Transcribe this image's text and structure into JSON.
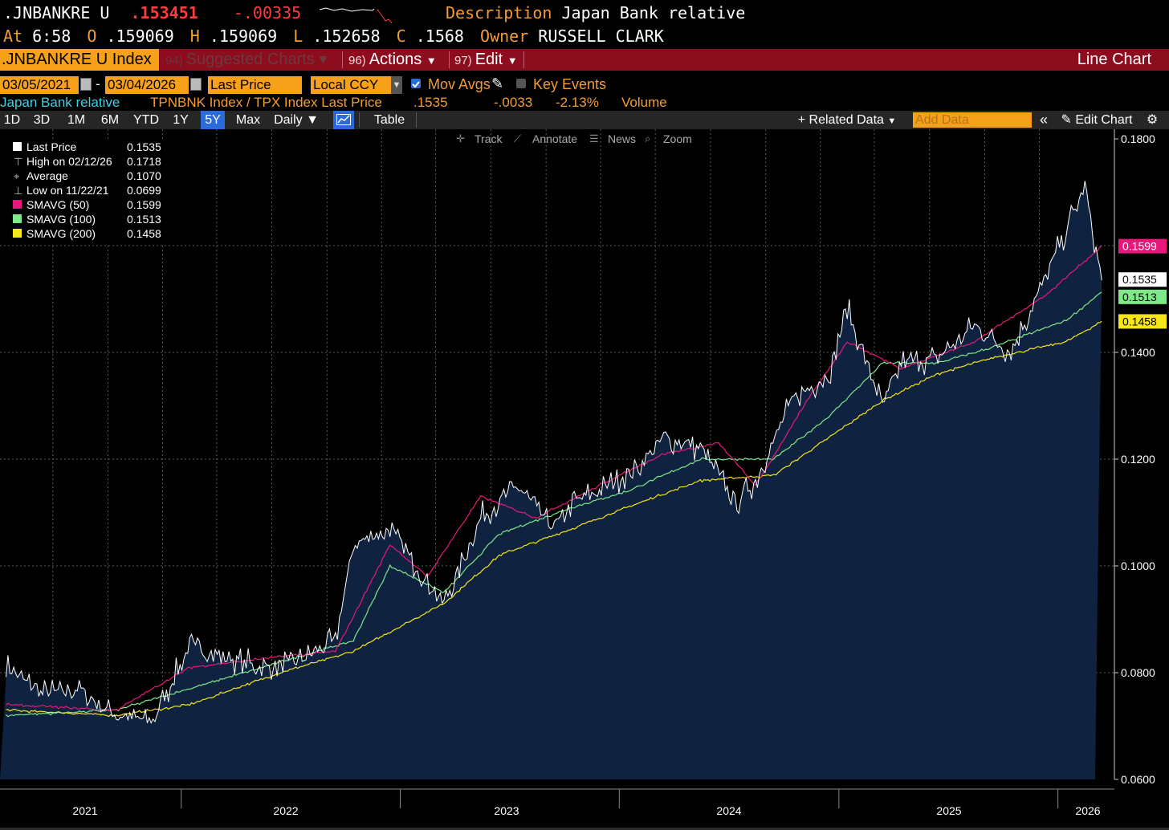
{
  "header": {
    "ticker": ".JNBANKRE U",
    "last": ".153451",
    "change": "-.00335",
    "desc_label": "Description",
    "desc_value": "Japan Bank relative",
    "at_label": "At",
    "time": "6:58",
    "o_label": "O",
    "open": ".159069",
    "h_label": "H",
    "high": ".159069",
    "l_label": "L",
    "low": ".152658",
    "c_label": "C",
    "close": ".1568",
    "owner_label": "Owner",
    "owner": "RUSSELL CLARK"
  },
  "menu": {
    "ticker_field": ".JNBANKRE U Index",
    "suggested_num": "94)",
    "suggested": "Suggested Charts",
    "actions_num": "96)",
    "actions": "Actions",
    "edit_num": "97)",
    "edit": "Edit",
    "chart_type": "Line Chart"
  },
  "controls": {
    "start_date": "03/05/2021",
    "dash": "-",
    "end_date": "03/04/2026",
    "field": "Last Price",
    "currency": "Local CCY",
    "mov_avgs": "Mov Avgs",
    "key_events": "Key Events"
  },
  "series_row": {
    "name": "Japan Bank relative",
    "formula": "TPNBNK Index / TPX Index Last Price",
    "last": ".1535",
    "change": "-.0033",
    "pct": "-2.13%",
    "volume": "Volume"
  },
  "toolbar": {
    "periods": [
      "1D",
      "3D",
      "1M",
      "6M",
      "YTD",
      "1Y",
      "5Y",
      "Max"
    ],
    "active_period": "5Y",
    "frequency": "Daily",
    "table": "Table",
    "related": "Related Data",
    "add_data_placeholder": "Add Data",
    "edit_chart": "Edit Chart"
  },
  "chart_tools": [
    "Track",
    "Annotate",
    "News",
    "Zoom"
  ],
  "legend": [
    {
      "label": "Last Price",
      "value": "0.1535",
      "color": "#ffffff",
      "marker": "square"
    },
    {
      "label": "High on 02/12/26",
      "value": "0.1718",
      "color": "#bbbbbb",
      "marker": "high"
    },
    {
      "label": "Average",
      "value": "0.1070",
      "color": "#bbbbbb",
      "marker": "avg"
    },
    {
      "label": "Low on 11/22/21",
      "value": "0.0699",
      "color": "#bbbbbb",
      "marker": "low"
    },
    {
      "label": "SMAVG (50)",
      "value": "0.1599",
      "color": "#e8187a",
      "marker": "square"
    },
    {
      "label": "SMAVG (100)",
      "value": "0.1513",
      "color": "#7ee88a",
      "marker": "square"
    },
    {
      "label": "SMAVG (200)",
      "value": "0.1458",
      "color": "#f5e61a",
      "marker": "square"
    }
  ],
  "colors": {
    "accent_orange": "#f7a11a",
    "menu_red": "#8b0d1e",
    "area_fill": "#0f2340",
    "price": "#ffffff",
    "sma50": "#e8187a",
    "sma100": "#7ee88a",
    "sma200": "#f5e61a"
  },
  "chart_data": {
    "type": "area",
    "title": "Japan Bank relative",
    "ylim": [
      0.06,
      0.18
    ],
    "y_ticks": [
      "0.0600",
      "0.0800",
      "0.1000",
      "0.1200",
      "0.1400",
      "0.1800"
    ],
    "x_ticks": [
      "2021",
      "2022",
      "2023",
      "2024",
      "2025",
      "2026"
    ],
    "x_range": [
      "2021-03-05",
      "2026-03-04"
    ],
    "grid": true,
    "legend_position": "top-left",
    "series": [
      {
        "name": "Last Price",
        "x": [
          "2021-03",
          "2021-05",
          "2021-07",
          "2021-09",
          "2021-11",
          "2022-01",
          "2022-03",
          "2022-05",
          "2022-07",
          "2022-09",
          "2022-10",
          "2022-12",
          "2023-02",
          "2023-03",
          "2023-05",
          "2023-07",
          "2023-09",
          "2023-10",
          "2023-12",
          "2024-02",
          "2024-03",
          "2024-05",
          "2024-07",
          "2024-08",
          "2024-10",
          "2024-12",
          "2025-01",
          "2025-03",
          "2025-04",
          "2025-06",
          "2025-08",
          "2025-10",
          "2025-12",
          "2026-02",
          "2026-03"
        ],
        "values": [
          0.081,
          0.076,
          0.077,
          0.072,
          0.071,
          0.085,
          0.083,
          0.081,
          0.082,
          0.086,
          0.104,
          0.107,
          0.097,
          0.093,
          0.109,
          0.115,
          0.107,
          0.112,
          0.115,
          0.12,
          0.124,
          0.122,
          0.112,
          0.116,
          0.131,
          0.136,
          0.148,
          0.13,
          0.138,
          0.139,
          0.145,
          0.14,
          0.155,
          0.171,
          0.1535
        ]
      },
      {
        "name": "SMAVG (50)",
        "x": [
          "2021-03",
          "2021-09",
          "2022-01",
          "2022-06",
          "2022-09",
          "2022-12",
          "2023-02",
          "2023-05",
          "2023-08",
          "2023-12",
          "2024-03",
          "2024-06",
          "2024-08",
          "2024-11",
          "2025-01",
          "2025-04",
          "2025-08",
          "2025-12",
          "2026-03"
        ],
        "values": [
          0.074,
          0.073,
          0.081,
          0.083,
          0.084,
          0.104,
          0.098,
          0.113,
          0.109,
          0.116,
          0.121,
          0.123,
          0.115,
          0.132,
          0.142,
          0.137,
          0.142,
          0.151,
          0.1599
        ]
      },
      {
        "name": "SMAVG (100)",
        "x": [
          "2021-03",
          "2021-09",
          "2022-01",
          "2022-06",
          "2022-10",
          "2022-12",
          "2023-03",
          "2023-06",
          "2023-10",
          "2024-01",
          "2024-05",
          "2024-09",
          "2024-12",
          "2025-03",
          "2025-06",
          "2025-09",
          "2026-01",
          "2026-03"
        ],
        "values": [
          0.072,
          0.073,
          0.077,
          0.082,
          0.086,
          0.1,
          0.095,
          0.106,
          0.111,
          0.114,
          0.12,
          0.12,
          0.128,
          0.138,
          0.138,
          0.141,
          0.146,
          0.1513
        ]
      },
      {
        "name": "SMAVG (200)",
        "x": [
          "2021-03",
          "2021-09",
          "2022-01",
          "2022-06",
          "2022-10",
          "2023-03",
          "2023-06",
          "2023-10",
          "2024-01",
          "2024-05",
          "2024-09",
          "2024-12",
          "2025-03",
          "2025-06",
          "2025-09",
          "2026-01",
          "2026-03"
        ],
        "values": [
          0.073,
          0.072,
          0.074,
          0.08,
          0.084,
          0.093,
          0.102,
          0.107,
          0.111,
          0.116,
          0.117,
          0.124,
          0.131,
          0.136,
          0.139,
          0.142,
          0.1458
        ]
      }
    ],
    "price_labels": [
      {
        "value": "0.1599",
        "color": "#e8187a"
      },
      {
        "value": "0.1535",
        "color": "#ffffff"
      },
      {
        "value": "0.1513",
        "color": "#7ee88a"
      },
      {
        "value": "0.1458",
        "color": "#f5e61a"
      }
    ]
  }
}
